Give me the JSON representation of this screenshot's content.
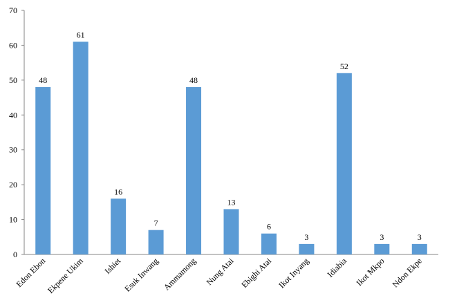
{
  "chart_data": {
    "type": "bar",
    "categories": [
      "Edon Ebon",
      "Ekpene Ukim",
      "Ishiet",
      "Esuk Inwang",
      "Ammamong",
      "Nung Atai",
      "Ebighi Atai",
      "Ikot Inyang",
      "Idiabia",
      "Ikot Mkpo",
      "Ndon Ekpe"
    ],
    "values": [
      48,
      61,
      16,
      7,
      48,
      13,
      6,
      3,
      52,
      3,
      3
    ],
    "color": "#5b9bd5",
    "ylim": [
      0,
      70
    ],
    "yticks": [
      0,
      10,
      20,
      30,
      40,
      50,
      60,
      70
    ],
    "grid": false
  }
}
